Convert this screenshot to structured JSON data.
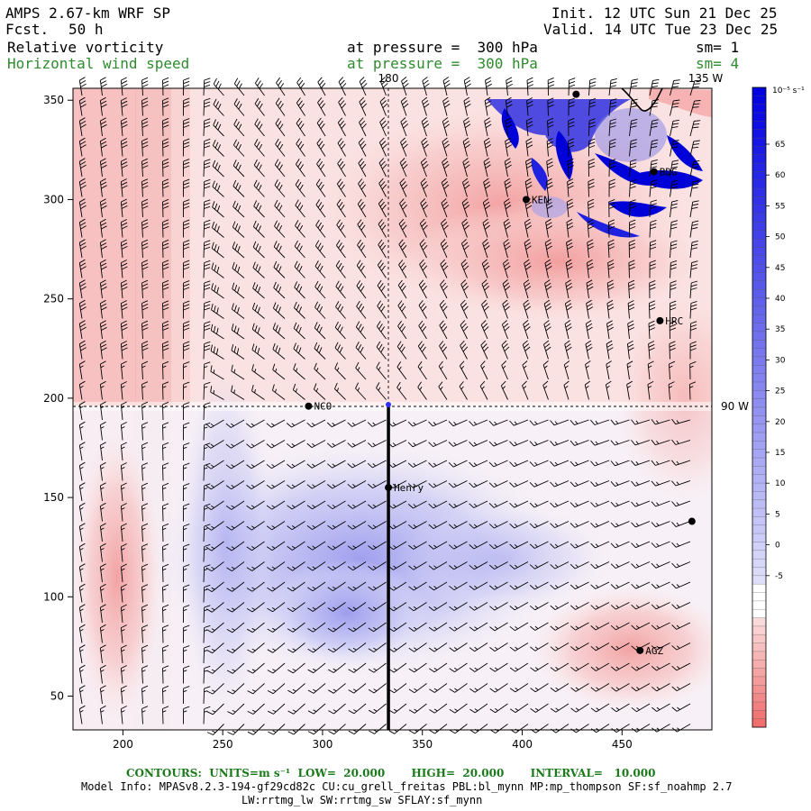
{
  "header": {
    "model": "AMPS 2.67-km WRF SP",
    "fcst_label": "Fcst.",
    "fcst_value": "50 h",
    "init": "Init. 12 UTC Sun 21 Dec 25",
    "valid": "Valid. 14 UTC Tue 23 Dec 25",
    "field1": "Relative vorticity",
    "field1_pressure": "at pressure =  300 hPa",
    "field1_sm": "sm= 1",
    "field2": "Horizontal wind speed",
    "field2_pressure": "at pressure =  300 hPa",
    "field2_sm": "sm= 4"
  },
  "map": {
    "lon_labels": [
      "180",
      "135 W",
      "90 W"
    ],
    "x_ticks": [
      "200",
      "250",
      "300",
      "350",
      "400",
      "450"
    ],
    "y_ticks": [
      "50",
      "100",
      "150",
      "200",
      "250",
      "300",
      "350"
    ],
    "x_range": [
      175,
      495
    ],
    "y_range": [
      33,
      356
    ],
    "stations": [
      {
        "name": "NCO",
        "x": 293,
        "y": 196
      },
      {
        "name": "Henry",
        "x": 333,
        "y": 155
      },
      {
        "name": "KEN",
        "x": 402,
        "y": 300
      },
      {
        "name": "BDG",
        "x": 466,
        "y": 314
      },
      {
        "name": "HRC",
        "x": 469,
        "y": 239
      },
      {
        "name": "AGZ",
        "x": 459,
        "y": 73
      },
      {
        "name": "",
        "x": 485,
        "y": 138
      },
      {
        "name": "",
        "x": 427,
        "y": 353
      }
    ],
    "cross_section": {
      "x": 333,
      "y_from": 196,
      "y_to": 33
    },
    "colors": {
      "positive": "#f08080",
      "negative": "#6a6ae0",
      "strong": "#0000e0"
    }
  },
  "colorbar": {
    "unit": "10⁻⁵ s⁻¹",
    "labels": [
      "65",
      "60",
      "55",
      "50",
      "45",
      "40",
      "35",
      "30",
      "25",
      "20",
      "15",
      "10",
      "5",
      "0",
      "-5"
    ]
  },
  "footer": {
    "contours": "CONTOURS:  UNITS=m s⁻¹  LOW=  20.000       HIGH=  20.000       INTERVAL=   10.000",
    "model_info": "Model Info: MPASv8.2.3-194-gf29cd82c CU:cu_grell_freitas PBL:bl_mynn MP:mp_thompson SF:sf_noahmp 2.7",
    "model_info2": "LW:rrtmg_lw SW:rrtmg_sw SFLAY:sf_mynn"
  }
}
